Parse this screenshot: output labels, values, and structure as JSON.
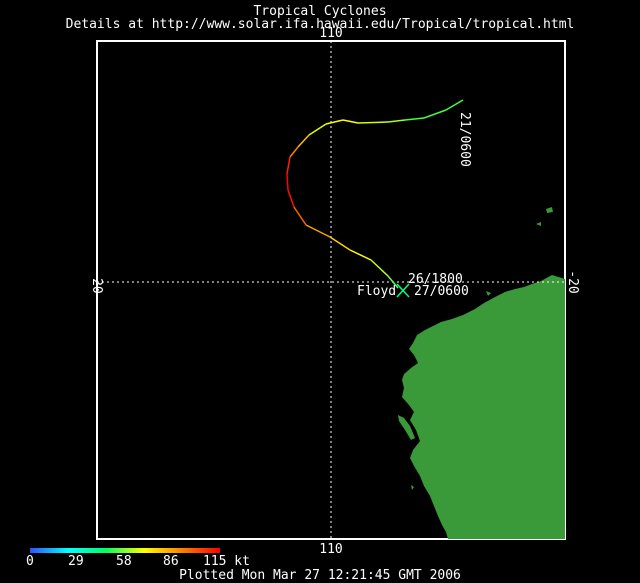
{
  "header": {
    "title": "Tropical Cyclones",
    "subtitle": "Details at http://www.solar.ifa.hawaii.edu/Tropical/tropical.html"
  },
  "map": {
    "longitude_label_top": "110",
    "longitude_label_bottom": "110",
    "latitude_label_left": "-20",
    "latitude_label_right": "-20",
    "storm": {
      "name": "Floyd",
      "start_label": "21/0600",
      "mid_label": "26/1800",
      "end_label": "27/0600"
    },
    "colors": {
      "land": "#3a9a3a",
      "grid": "#ffffff",
      "frame": "#ffffff"
    }
  },
  "legend": {
    "ticks": [
      "0",
      "29",
      "58",
      "86",
      "115 kt"
    ],
    "gradient": [
      "#3050ff",
      "#00ffff",
      "#00ff60",
      "#ffff00",
      "#ff8000",
      "#ff0000"
    ]
  },
  "footer": {
    "plotted": "Plotted Mon Mar 27 12:21:45 GMT 2006"
  }
}
